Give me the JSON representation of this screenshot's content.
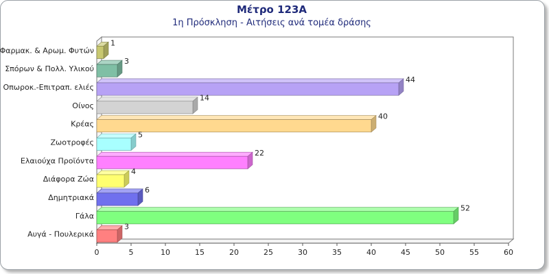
{
  "chart_data": {
    "type": "bar",
    "orientation": "horizontal",
    "title": "Μέτρο 123Α",
    "subtitle": "1η Πρόσκληση - Αιτήσεις ανά τομέα δράσης",
    "categories": [
      "Φαρμακ. & Αρωμ. Φυτών",
      "Σπόρων & Πολλ. Υλικού",
      "Οπωροκ.-Επιτραπ. ελιές",
      "Οίνος",
      "Κρέας",
      "Ζωοτροφές",
      "Ελαιούχα Προϊόντα",
      "Διάφορα Ζώα",
      "Δημητριακά",
      "Γάλα",
      "Αυγά - Πουλερικά"
    ],
    "values": [
      1,
      3,
      44,
      14,
      40,
      5,
      22,
      4,
      6,
      52,
      3
    ],
    "colors": [
      "#c8c870",
      "#7fbfa5",
      "#b7a2f5",
      "#d3d3d3",
      "#ffd98f",
      "#a8ffff",
      "#ff80ff",
      "#ffff70",
      "#7070ee",
      "#7fff7f",
      "#ff8080"
    ],
    "xlim": [
      0,
      60
    ],
    "xticks": [
      0,
      5,
      10,
      15,
      20,
      25,
      30,
      35,
      40,
      45,
      50,
      55,
      60
    ],
    "grid": false,
    "legend": "none",
    "style": "3d"
  }
}
